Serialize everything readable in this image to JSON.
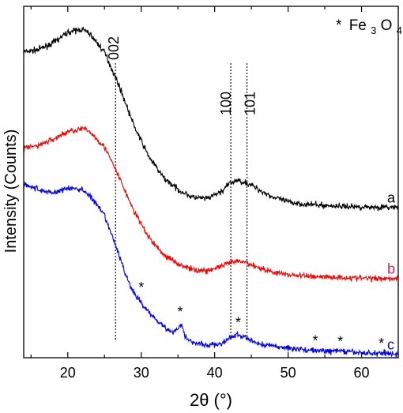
{
  "chart_data": {
    "type": "line",
    "xlabel": "2θ (°)",
    "ylabel": "Intensity (Counts)",
    "xlim": [
      14,
      65
    ],
    "x_ticks": [
      20,
      30,
      40,
      50,
      60
    ],
    "y_ticks_shown": false,
    "grid": false,
    "legend": {
      "placement": "top-right",
      "marker": "*",
      "compound_base": "Fe",
      "sub1": "3",
      "compound_mid": "O",
      "sub2": "4"
    },
    "series": [
      {
        "name": "a",
        "color": "#000000",
        "x": [
          14,
          16,
          18,
          20,
          22,
          23,
          25,
          27,
          29,
          31,
          33,
          35,
          37,
          39,
          41,
          42,
          43,
          44,
          45,
          46,
          48,
          50,
          52,
          55,
          58,
          61,
          65
        ],
        "y": [
          100,
          100.8,
          103,
          106.5,
          107.5,
          106,
          100,
          89,
          76,
          66,
          59,
          55,
          52.5,
          52,
          54.5,
          57,
          58,
          57.5,
          56.5,
          55,
          52.5,
          51,
          50.3,
          49.8,
          49.5,
          49.3,
          49.2
        ]
      },
      {
        "name": "b",
        "color": "#ff0000",
        "x": [
          14,
          16,
          18,
          20,
          22,
          23,
          25,
          27,
          29,
          31,
          33,
          35,
          37,
          39,
          41,
          42,
          43,
          44,
          45,
          46,
          48,
          50,
          52,
          55,
          58,
          61,
          65
        ],
        "y": [
          68.5,
          69.5,
          71.5,
          74,
          75,
          74,
          69,
          59,
          48,
          39.5,
          33.8,
          30.8,
          28.8,
          28.5,
          30,
          31,
          31.5,
          31.3,
          30.5,
          29.5,
          28,
          27.2,
          26.8,
          26.5,
          26.2,
          26,
          26
        ]
      },
      {
        "name": "c",
        "color": "#0000ff",
        "x": [
          14,
          16,
          18,
          20,
          22,
          23,
          25,
          27,
          28,
          29,
          30,
          31,
          33,
          34,
          35,
          35.5,
          36,
          37,
          39,
          41,
          42,
          43,
          44,
          45,
          46,
          48,
          50,
          52,
          54,
          56,
          57,
          58,
          60,
          62,
          63,
          65
        ],
        "y": [
          57,
          55,
          54,
          55.5,
          55,
          53,
          46.5,
          33.5,
          26.5,
          21,
          18,
          15,
          10.5,
          8.3,
          9.5,
          11,
          7,
          5,
          4,
          4.6,
          6.3,
          7.5,
          6.8,
          5.5,
          4.6,
          3.8,
          3.2,
          2.7,
          2.3,
          2.1,
          2.4,
          1.9,
          1.6,
          1.4,
          1.7,
          1.1
        ]
      }
    ],
    "reference_lines": [
      {
        "x": 26.5,
        "label": "002"
      },
      {
        "x": 42.2,
        "label": "100"
      },
      {
        "x": 44.4,
        "label": "101"
      }
    ],
    "annotations": [
      {
        "text": "*",
        "x": 30,
        "y": 23
      },
      {
        "text": "*",
        "x": 35.3,
        "y": 15
      },
      {
        "text": "*",
        "x": 43.2,
        "y": 11.5
      },
      {
        "text": "*",
        "x": 53.7,
        "y": 5.5
      },
      {
        "text": "*",
        "x": 57.1,
        "y": 5.3
      },
      {
        "text": "*",
        "x": 62.7,
        "y": 4.7
      }
    ]
  }
}
